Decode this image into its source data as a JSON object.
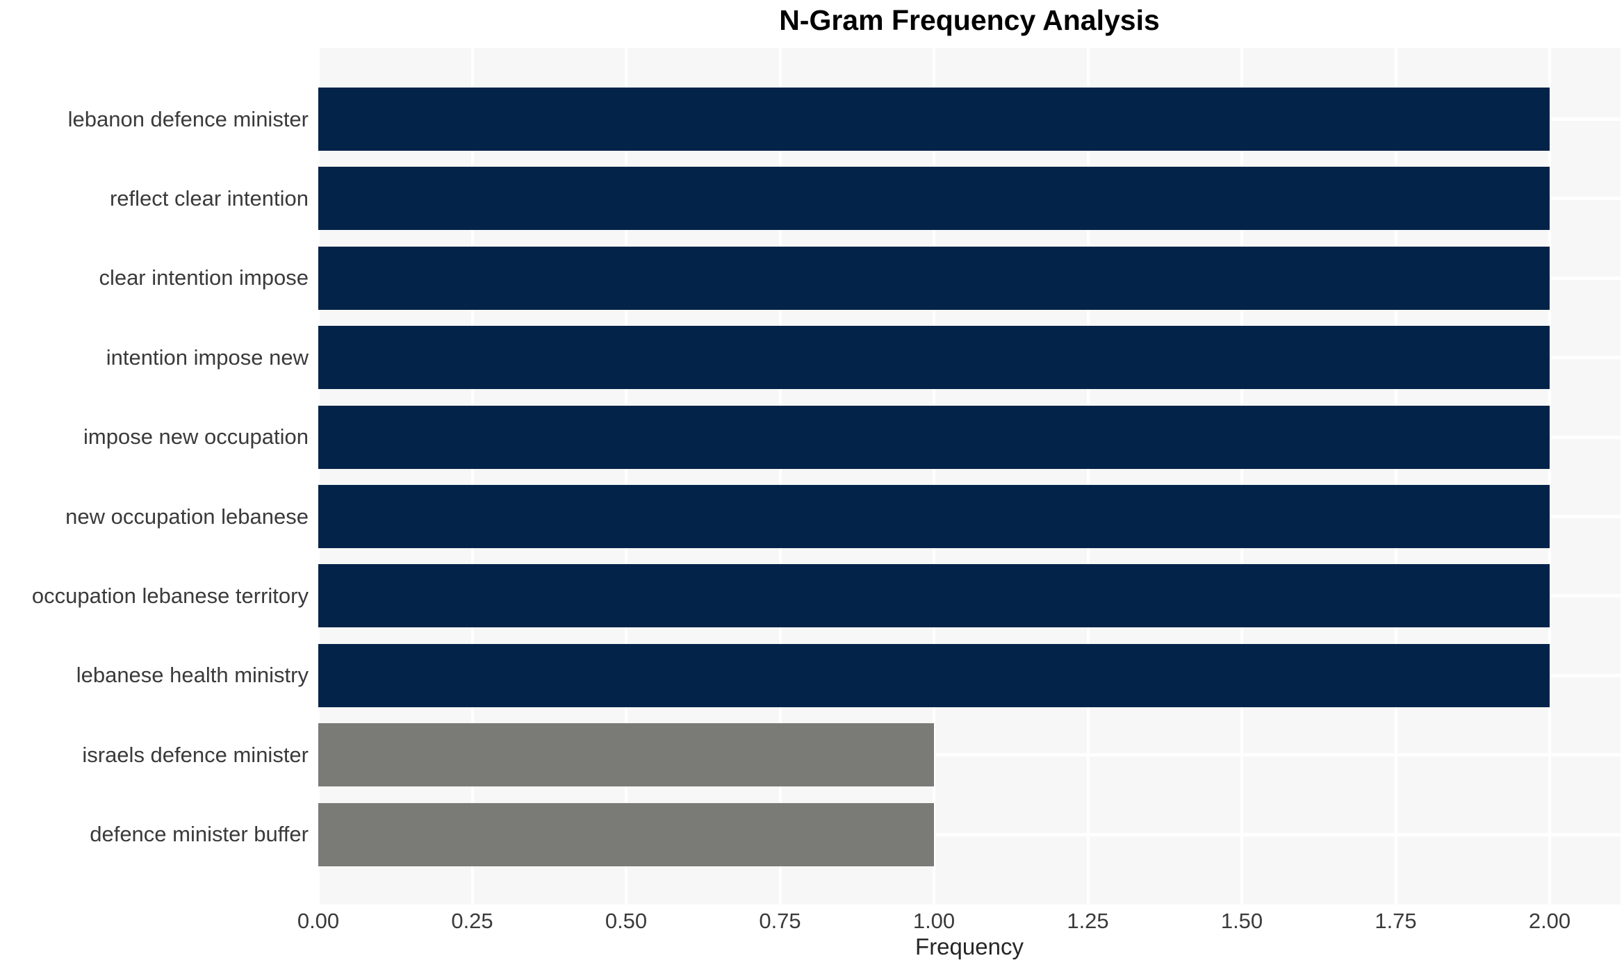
{
  "chart_data": {
    "type": "bar",
    "orientation": "horizontal",
    "title": "N-Gram Frequency Analysis",
    "xlabel": "Frequency",
    "ylabel": "",
    "categories": [
      "lebanon defence minister",
      "reflect clear intention",
      "clear intention impose",
      "intention impose new",
      "impose new occupation",
      "new occupation lebanese",
      "occupation lebanese territory",
      "lebanese health ministry",
      "israels defence minister",
      "defence minister buffer"
    ],
    "values": [
      2,
      2,
      2,
      2,
      2,
      2,
      2,
      2,
      1,
      1
    ],
    "bar_colors": [
      "#042349",
      "#042349",
      "#042349",
      "#042349",
      "#042349",
      "#042349",
      "#042349",
      "#042349",
      "#7a7b77",
      "#7a7b77"
    ],
    "xlim": [
      0,
      2.11
    ],
    "xtick_values": [
      0,
      0.25,
      0.5,
      0.75,
      1.0,
      1.25,
      1.5,
      1.75,
      2.0
    ],
    "xtick_labels": [
      "0.00",
      "0.25",
      "0.50",
      "0.75",
      "1.00",
      "1.25",
      "1.50",
      "1.75",
      "2.00"
    ],
    "grid": "on",
    "legend": null
  },
  "colors": {
    "bar_primary": "#042349",
    "bar_secondary": "#7a7b77",
    "plot_background": "#f6f7f6",
    "gridline": "#ffffff",
    "title_text": "#000000",
    "axis_text": "#3a3a3a"
  }
}
